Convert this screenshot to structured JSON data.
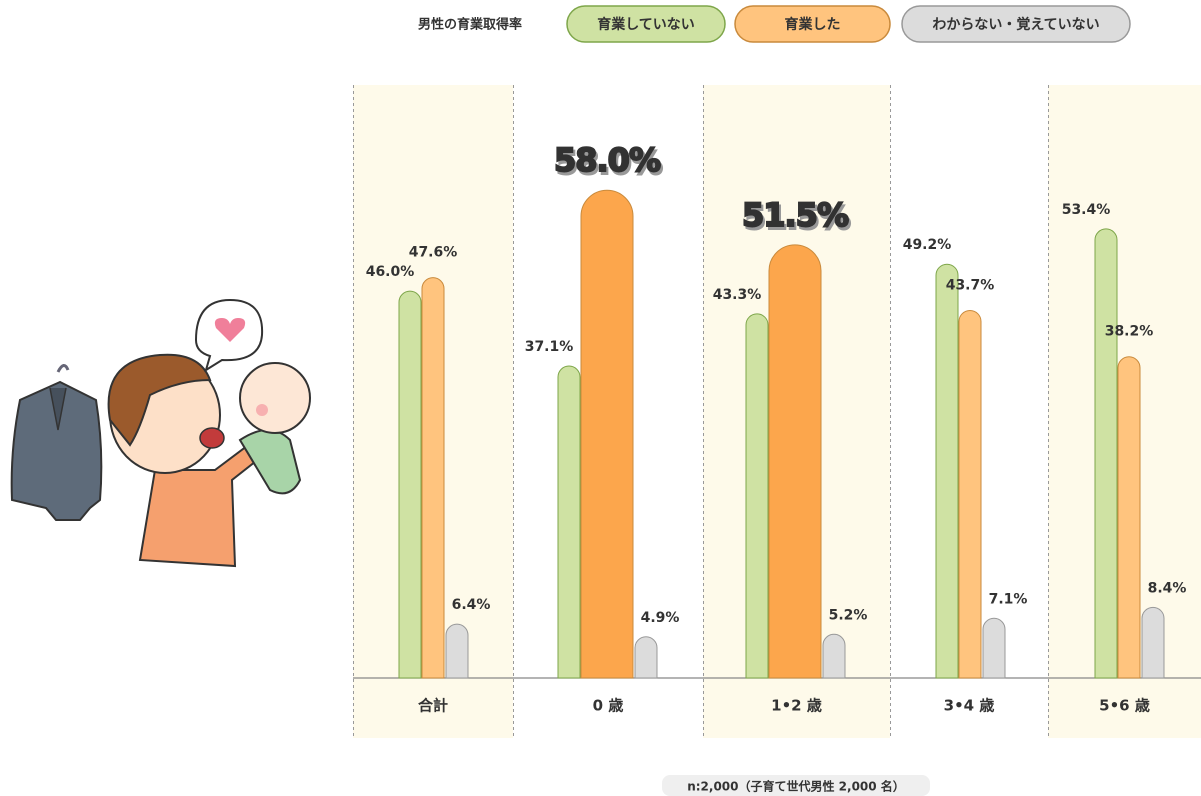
{
  "chart_data": {
    "type": "bar",
    "legend_title": "男性の育業取得率",
    "categories": [
      "合計",
      "0 歳",
      "1•2 歳",
      "3•4 歳",
      "5•6 歳"
    ],
    "series": [
      {
        "name": "育業していない",
        "color": "#cfe2a3",
        "values": [
          46.0,
          37.1,
          43.3,
          49.2,
          53.4
        ],
        "value_labels": [
          "46.0%",
          "37.1%",
          "43.3%",
          "49.2%",
          "53.4%"
        ]
      },
      {
        "name": "育業した",
        "color": "#ffc47e",
        "values": [
          47.6,
          58.0,
          51.5,
          43.7,
          38.2
        ],
        "value_labels": [
          "47.6%",
          "58.0%",
          "51.5%",
          "43.7%",
          "38.2%"
        ]
      },
      {
        "name": "わからない・覚えていない",
        "color": "#dcdcdc",
        "values": [
          6.4,
          4.9,
          5.2,
          7.1,
          8.4
        ],
        "value_labels": [
          "6.4%",
          "4.9%",
          "5.2%",
          "7.1%",
          "8.4%"
        ]
      }
    ],
    "highlight": [
      1,
      2
    ],
    "highlight_color": "#fca64c",
    "footnote": "n:2,000（子育て世代男性 2,000 名）"
  }
}
